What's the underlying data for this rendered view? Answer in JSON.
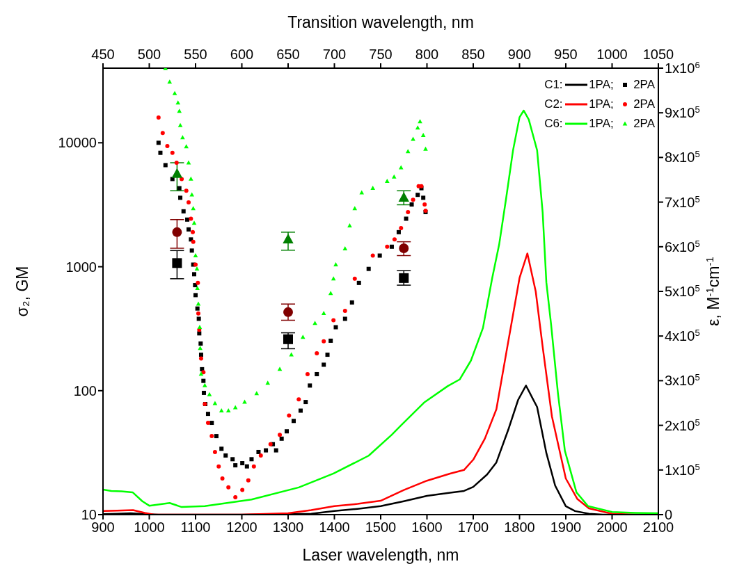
{
  "chart_data": {
    "type": "scatter",
    "xlabel": "Laser wavelength, nm",
    "x2label": "Transition wavelength, nm",
    "ylabel": "σ₂, GM",
    "y2label": "ε, M$^{-1}$cm$^{-1}$",
    "xlim": [
      900,
      2100
    ],
    "xticks": [
      900,
      1000,
      1100,
      1200,
      1300,
      1400,
      1500,
      1600,
      1700,
      1800,
      1900,
      2000,
      2100
    ],
    "x2lim": [
      450,
      1050
    ],
    "x2ticks": [
      450,
      500,
      550,
      600,
      650,
      700,
      750,
      800,
      850,
      900,
      950,
      1000,
      1050
    ],
    "ylim": [
      10,
      40000
    ],
    "yticks": [
      10,
      100,
      1000,
      10000
    ],
    "log": "y",
    "y2lim": [
      0,
      1000000
    ],
    "y2ticks": [
      0,
      {
        "value": 100000,
        "label": "1x10$^{5}$"
      },
      {
        "value": 200000,
        "label": "2x10$^{5}$"
      },
      {
        "value": 300000,
        "label": "3x10$^{5}$"
      },
      {
        "value": 400000,
        "label": "4x10$^{5}$"
      },
      {
        "value": 500000,
        "label": "5x10$^{5}$"
      },
      {
        "value": 600000,
        "label": "6x10$^{5}$"
      },
      {
        "value": 700000,
        "label": "7x10$^{5}$"
      },
      {
        "value": 800000,
        "label": "8x10$^{5}$"
      },
      {
        "value": 900000,
        "label": "9x10$^{5}$"
      },
      {
        "value": 1000000,
        "label": "1x10$^{6}$"
      }
    ],
    "legend": "top right",
    "grid": false,
    "annotations": [
      "C1:",
      "C2:",
      "C6:"
    ],
    "series": [
      {
        "name": "1PA;",
        "type": "line",
        "axis": "y2",
        "color": "#000000",
        "x": [
          900,
          930,
          960,
          990,
          1020,
          1100,
          1200,
          1300,
          1350,
          1400,
          1450,
          1500,
          1550,
          1600,
          1650,
          1680,
          1700,
          1730,
          1750,
          1777,
          1797,
          1814,
          1838,
          1858,
          1877,
          1900,
          1920,
          1950,
          1980,
          2000,
          2100
        ],
        "values": [
          1000,
          2000,
          3000,
          1000,
          0,
          0,
          0,
          1000,
          2000,
          8000,
          13000,
          19000,
          30000,
          42000,
          49000,
          53000,
          62000,
          90000,
          117000,
          194000,
          257000,
          289000,
          241000,
          138000,
          65000,
          19000,
          8000,
          2000,
          0,
          0,
          0
        ]
      },
      {
        "name": "1PA;",
        "type": "line",
        "axis": "y2",
        "color": "#ff0000",
        "x": [
          900,
          930,
          965,
          990,
          1010,
          1100,
          1200,
          1300,
          1350,
          1400,
          1450,
          1500,
          1550,
          1600,
          1650,
          1680,
          1700,
          1725,
          1750,
          1771,
          1800,
          1817,
          1835,
          1850,
          1870,
          1900,
          1925,
          1950,
          2000,
          2050,
          2100
        ],
        "values": [
          8000,
          9000,
          10000,
          4000,
          0,
          0,
          0,
          3000,
          10000,
          19000,
          24000,
          31000,
          55000,
          76000,
          92000,
          100000,
          123000,
          170000,
          236000,
          360000,
          530000,
          585000,
          500000,
          376000,
          220000,
          81000,
          35000,
          14000,
          2000,
          0,
          0
        ]
      },
      {
        "name": "1PA;",
        "type": "line",
        "axis": "y2",
        "color": "#00ff00",
        "x": [
          900,
          918,
          940,
          964,
          985,
          1000,
          1044,
          1070,
          1120,
          1221,
          1323,
          1398,
          1474,
          1524,
          1544,
          1595,
          1645,
          1671,
          1695,
          1721,
          1741,
          1756,
          1771,
          1786,
          1800,
          1809,
          1820,
          1838,
          1850,
          1858,
          1868,
          1883,
          1898,
          1923,
          1948,
          2000,
          2050,
          2100
        ],
        "values": [
          56000,
          53000,
          52000,
          50000,
          30000,
          20000,
          26000,
          17000,
          19000,
          34000,
          61000,
          92000,
          132000,
          179000,
          200000,
          252000,
          288000,
          303000,
          345000,
          418000,
          530000,
          605000,
          708000,
          816000,
          890000,
          905000,
          885000,
          816000,
          677000,
          520000,
          428000,
          272000,
          143000,
          50000,
          19000,
          6000,
          4000,
          3000
        ]
      },
      {
        "name": "2PA",
        "marker": "square",
        "color": "#000000",
        "x": [
          1020,
          1024,
          1035,
          1050,
          1065,
          1067,
          1074,
          1082,
          1085,
          1090,
          1092,
          1095,
          1097,
          1099,
          1100,
          1104,
          1107,
          1108,
          1111,
          1112,
          1114,
          1117,
          1118,
          1121,
          1127,
          1135,
          1145,
          1156,
          1165,
          1180,
          1186,
          1201,
          1211,
          1221,
          1236,
          1252,
          1267,
          1274,
          1286,
          1297,
          1312,
          1327,
          1338,
          1347,
          1362,
          1377,
          1385,
          1392,
          1403,
          1423,
          1438,
          1453,
          1474,
          1498,
          1524,
          1539,
          1555,
          1567,
          1580,
          1588,
          1592,
          1597
        ],
        "values": [
          10000,
          8300,
          6600,
          5100,
          4300,
          3600,
          2800,
          2400,
          2000,
          1660,
          1350,
          1040,
          870,
          710,
          590,
          460,
          380,
          290,
          240,
          195,
          149,
          120,
          96,
          78,
          65,
          55,
          43,
          34,
          30,
          28,
          25,
          26,
          24.5,
          28,
          32,
          33,
          37,
          33,
          41,
          47,
          57,
          69,
          81,
          110,
          136,
          162,
          195,
          253,
          325,
          380,
          515,
          740,
          960,
          1230,
          1450,
          1900,
          2440,
          3180,
          3800,
          4300,
          3600,
          2760
        ]
      },
      {
        "name": "2PA",
        "marker": "circle",
        "color": "#ff0000",
        "x": [
          1020,
          1029,
          1039,
          1050,
          1059,
          1070,
          1080,
          1085,
          1090,
          1094,
          1095,
          1100,
          1105,
          1106,
          1108,
          1112,
          1117,
          1120,
          1127,
          1135,
          1142,
          1150,
          1158,
          1171,
          1186,
          1201,
          1214,
          1226,
          1241,
          1262,
          1282,
          1302,
          1323,
          1342,
          1362,
          1377,
          1398,
          1423,
          1444,
          1483,
          1514,
          1530,
          1544,
          1559,
          1570,
          1582,
          1588,
          1595,
          1597
        ],
        "values": [
          16000,
          12000,
          9400,
          8300,
          6900,
          5100,
          4100,
          3300,
          2440,
          1900,
          1590,
          1040,
          740,
          420,
          310,
          182,
          141,
          78,
          55,
          43,
          32,
          24.5,
          19.6,
          16.6,
          13.8,
          15.8,
          18.9,
          24.5,
          30,
          37,
          44,
          63,
          85,
          136,
          200,
          250,
          370,
          440,
          800,
          1230,
          1450,
          1660,
          2050,
          2760,
          3470,
          4470,
          4470,
          3180,
          2830
        ]
      },
      {
        "name": "2PA",
        "marker": "triangle",
        "color": "#00ff00",
        "x": [
          1035,
          1044,
          1055,
          1062,
          1065,
          1067,
          1072,
          1080,
          1085,
          1090,
          1092,
          1095,
          1097,
          1100,
          1103,
          1104,
          1106,
          1109,
          1110,
          1112,
          1120,
          1130,
          1142,
          1156,
          1171,
          1186,
          1206,
          1232,
          1256,
          1282,
          1307,
          1332,
          1358,
          1377,
          1392,
          1398,
          1403,
          1423,
          1433,
          1444,
          1459,
          1483,
          1514,
          1529,
          1544,
          1559,
          1570,
          1580,
          1585,
          1592,
          1597
        ],
        "values": [
          39800,
          31000,
          25000,
          21000,
          18000,
          13800,
          11000,
          9300,
          6900,
          5100,
          3800,
          2950,
          2250,
          1230,
          960,
          670,
          500,
          325,
          220,
          136,
          110,
          93,
          79,
          69,
          69,
          73,
          81,
          95,
          115,
          149,
          195,
          270,
          350,
          420,
          610,
          800,
          1040,
          1400,
          2140,
          2950,
          3960,
          4300,
          4900,
          5300,
          6300,
          8500,
          10700,
          13200,
          14800,
          11500,
          8900
        ]
      },
      {
        "type": "scatter",
        "marker": "square",
        "color": "#000000",
        "x": [
          1060,
          1300,
          1550
        ],
        "values": [
          1070,
          260,
          810
        ],
        "errors": [
          [
            800,
            1350
          ],
          [
            218,
            293
          ],
          [
            710,
            930
          ]
        ]
      },
      {
        "type": "scatter",
        "marker": "circle",
        "color": "#800000",
        "x": [
          1060,
          1300,
          1550
        ],
        "values": [
          1900,
          430,
          1410
        ],
        "errors": [
          [
            1410,
            2400
          ],
          [
            370,
            500
          ],
          [
            1230,
            1590
          ]
        ]
      },
      {
        "type": "scatter",
        "marker": "triangle",
        "color": "#008000",
        "x": [
          1060,
          1300,
          1550
        ],
        "values": [
          5600,
          1660,
          3600
        ],
        "errors": [
          [
            4100,
            6900
          ],
          [
            1360,
            1900
          ],
          [
            3160,
            4100
          ]
        ]
      }
    ]
  }
}
